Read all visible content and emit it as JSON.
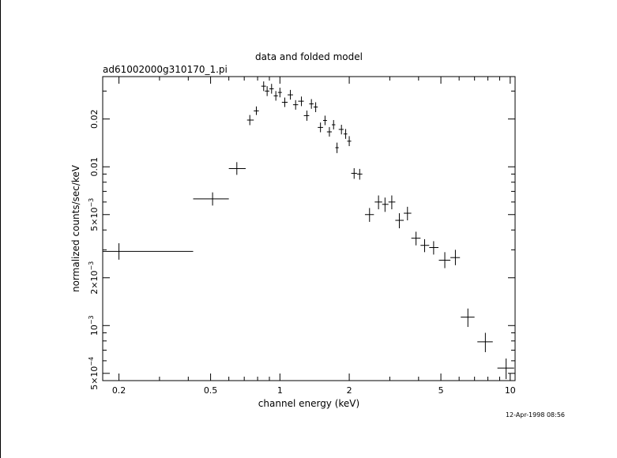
{
  "window": {
    "title": "data and folded model"
  },
  "header": {
    "dataset": "ad61002000g310170_1.pi"
  },
  "footer": {
    "timestamp": "12-Apr-1998 08:56"
  },
  "chart_data": {
    "type": "scatter",
    "title": "data and folded model",
    "subtitle": "ad61002000g310170_1.pi",
    "xlabel": "channel energy (keV)",
    "ylabel": "normalized counts/sec/keV",
    "xscale": "log",
    "yscale": "log",
    "xlim": [
      0.17,
      10.5
    ],
    "ylim": [
      0.00045,
      0.037
    ],
    "grid": false,
    "legend": "none",
    "x_ticks": [
      {
        "value": 0.2,
        "label": "0.2"
      },
      {
        "value": 0.5,
        "label": "0.5"
      },
      {
        "value": 1,
        "label": "1"
      },
      {
        "value": 2,
        "label": "2"
      },
      {
        "value": 5,
        "label": "5"
      },
      {
        "value": 10,
        "label": "10"
      }
    ],
    "y_ticks": [
      {
        "value": 0.0005,
        "mant": "5×10",
        "exp": "−4"
      },
      {
        "value": 0.001,
        "mant": "10",
        "exp": "−3"
      },
      {
        "value": 0.002,
        "mant": "2×10",
        "exp": "−3"
      },
      {
        "value": 0.005,
        "mant": "5×10",
        "exp": "−3"
      },
      {
        "value": 0.01,
        "mant": "0.01",
        "exp": ""
      },
      {
        "value": 0.02,
        "mant": "0.02",
        "exp": ""
      }
    ],
    "points": [
      {
        "x": 0.2,
        "xlo": 0.17,
        "xhi": 0.42,
        "y": 0.00293,
        "ylo": 0.0026,
        "yhi": 0.0033
      },
      {
        "x": 0.51,
        "xlo": 0.42,
        "xhi": 0.6,
        "y": 0.00628,
        "ylo": 0.0057,
        "yhi": 0.0069
      },
      {
        "x": 0.65,
        "xlo": 0.6,
        "xhi": 0.71,
        "y": 0.00975,
        "ylo": 0.0089,
        "yhi": 0.0107
      },
      {
        "x": 0.74,
        "xlo": 0.72,
        "xhi": 0.77,
        "y": 0.0197,
        "ylo": 0.0183,
        "yhi": 0.0212
      },
      {
        "x": 0.79,
        "xlo": 0.77,
        "xhi": 0.81,
        "y": 0.0225,
        "ylo": 0.0212,
        "yhi": 0.024
      },
      {
        "x": 0.85,
        "xlo": 0.83,
        "xhi": 0.87,
        "y": 0.0322,
        "ylo": 0.03,
        "yhi": 0.0345
      },
      {
        "x": 0.88,
        "xlo": 0.86,
        "xhi": 0.9,
        "y": 0.03,
        "ylo": 0.0279,
        "yhi": 0.0322
      },
      {
        "x": 0.92,
        "xlo": 0.9,
        "xhi": 0.94,
        "y": 0.031,
        "ylo": 0.0289,
        "yhi": 0.0333
      },
      {
        "x": 0.96,
        "xlo": 0.94,
        "xhi": 0.98,
        "y": 0.028,
        "ylo": 0.0261,
        "yhi": 0.03
      },
      {
        "x": 1.0,
        "xlo": 0.98,
        "xhi": 1.02,
        "y": 0.0294,
        "ylo": 0.0274,
        "yhi": 0.0315
      },
      {
        "x": 1.05,
        "xlo": 1.02,
        "xhi": 1.08,
        "y": 0.0255,
        "ylo": 0.0238,
        "yhi": 0.0273
      },
      {
        "x": 1.11,
        "xlo": 1.08,
        "xhi": 1.14,
        "y": 0.0284,
        "ylo": 0.0265,
        "yhi": 0.0305
      },
      {
        "x": 1.17,
        "xlo": 1.14,
        "xhi": 1.2,
        "y": 0.0246,
        "ylo": 0.0229,
        "yhi": 0.0263
      },
      {
        "x": 1.24,
        "xlo": 1.2,
        "xhi": 1.27,
        "y": 0.0259,
        "ylo": 0.0241,
        "yhi": 0.0277
      },
      {
        "x": 1.31,
        "xlo": 1.27,
        "xhi": 1.34,
        "y": 0.021,
        "ylo": 0.0195,
        "yhi": 0.0226
      },
      {
        "x": 1.37,
        "xlo": 1.34,
        "xhi": 1.4,
        "y": 0.0249,
        "ylo": 0.0232,
        "yhi": 0.0267
      },
      {
        "x": 1.43,
        "xlo": 1.4,
        "xhi": 1.46,
        "y": 0.0238,
        "ylo": 0.0221,
        "yhi": 0.0255
      },
      {
        "x": 1.5,
        "xlo": 1.46,
        "xhi": 1.54,
        "y": 0.0177,
        "ylo": 0.0165,
        "yhi": 0.019
      },
      {
        "x": 1.57,
        "xlo": 1.54,
        "xhi": 1.6,
        "y": 0.0196,
        "ylo": 0.0183,
        "yhi": 0.021
      },
      {
        "x": 1.64,
        "xlo": 1.6,
        "xhi": 1.68,
        "y": 0.0166,
        "ylo": 0.0155,
        "yhi": 0.0178
      },
      {
        "x": 1.71,
        "xlo": 1.68,
        "xhi": 1.74,
        "y": 0.0184,
        "ylo": 0.0172,
        "yhi": 0.0197
      },
      {
        "x": 1.77,
        "xlo": 1.74,
        "xhi": 1.8,
        "y": 0.0132,
        "ylo": 0.0122,
        "yhi": 0.0142
      },
      {
        "x": 1.85,
        "xlo": 1.8,
        "xhi": 1.89,
        "y": 0.0172,
        "ylo": 0.016,
        "yhi": 0.0184
      },
      {
        "x": 1.93,
        "xlo": 1.89,
        "xhi": 1.96,
        "y": 0.0161,
        "ylo": 0.015,
        "yhi": 0.0173
      },
      {
        "x": 2.0,
        "xlo": 1.96,
        "xhi": 2.04,
        "y": 0.0145,
        "ylo": 0.0135,
        "yhi": 0.0156
      },
      {
        "x": 2.1,
        "xlo": 2.04,
        "xhi": 2.16,
        "y": 0.0091,
        "ylo": 0.0084,
        "yhi": 0.0098
      },
      {
        "x": 2.22,
        "xlo": 2.16,
        "xhi": 2.28,
        "y": 0.009,
        "ylo": 0.0083,
        "yhi": 0.0097
      },
      {
        "x": 2.45,
        "xlo": 2.34,
        "xhi": 2.56,
        "y": 0.005,
        "ylo": 0.0045,
        "yhi": 0.0055
      },
      {
        "x": 2.68,
        "xlo": 2.58,
        "xhi": 2.78,
        "y": 0.006,
        "ylo": 0.0054,
        "yhi": 0.0066
      },
      {
        "x": 2.86,
        "xlo": 2.78,
        "xhi": 2.96,
        "y": 0.0058,
        "ylo": 0.0052,
        "yhi": 0.0064
      },
      {
        "x": 3.06,
        "xlo": 2.96,
        "xhi": 3.17,
        "y": 0.006,
        "ylo": 0.0054,
        "yhi": 0.0066
      },
      {
        "x": 3.3,
        "xlo": 3.17,
        "xhi": 3.45,
        "y": 0.0046,
        "ylo": 0.0041,
        "yhi": 0.0051
      },
      {
        "x": 3.58,
        "xlo": 3.45,
        "xhi": 3.72,
        "y": 0.0051,
        "ylo": 0.0046,
        "yhi": 0.0056
      },
      {
        "x": 3.9,
        "xlo": 3.72,
        "xhi": 4.08,
        "y": 0.00355,
        "ylo": 0.0032,
        "yhi": 0.0039
      },
      {
        "x": 4.25,
        "xlo": 4.08,
        "xhi": 4.45,
        "y": 0.0032,
        "ylo": 0.0029,
        "yhi": 0.0035
      },
      {
        "x": 4.65,
        "xlo": 4.45,
        "xhi": 4.88,
        "y": 0.0031,
        "ylo": 0.0028,
        "yhi": 0.0034
      },
      {
        "x": 5.2,
        "xlo": 4.9,
        "xhi": 5.5,
        "y": 0.00258,
        "ylo": 0.0023,
        "yhi": 0.0029
      },
      {
        "x": 5.78,
        "xlo": 5.5,
        "xhi": 6.05,
        "y": 0.00268,
        "ylo": 0.0024,
        "yhi": 0.003
      },
      {
        "x": 6.55,
        "xlo": 6.1,
        "xhi": 7.0,
        "y": 0.00113,
        "ylo": 0.00098,
        "yhi": 0.00128
      },
      {
        "x": 7.8,
        "xlo": 7.2,
        "xhi": 8.4,
        "y": 0.00079,
        "ylo": 0.00068,
        "yhi": 0.0009
      },
      {
        "x": 9.6,
        "xlo": 8.8,
        "xhi": 10.4,
        "y": 0.00054,
        "ylo": 0.00046,
        "yhi": 0.00062
      }
    ]
  }
}
